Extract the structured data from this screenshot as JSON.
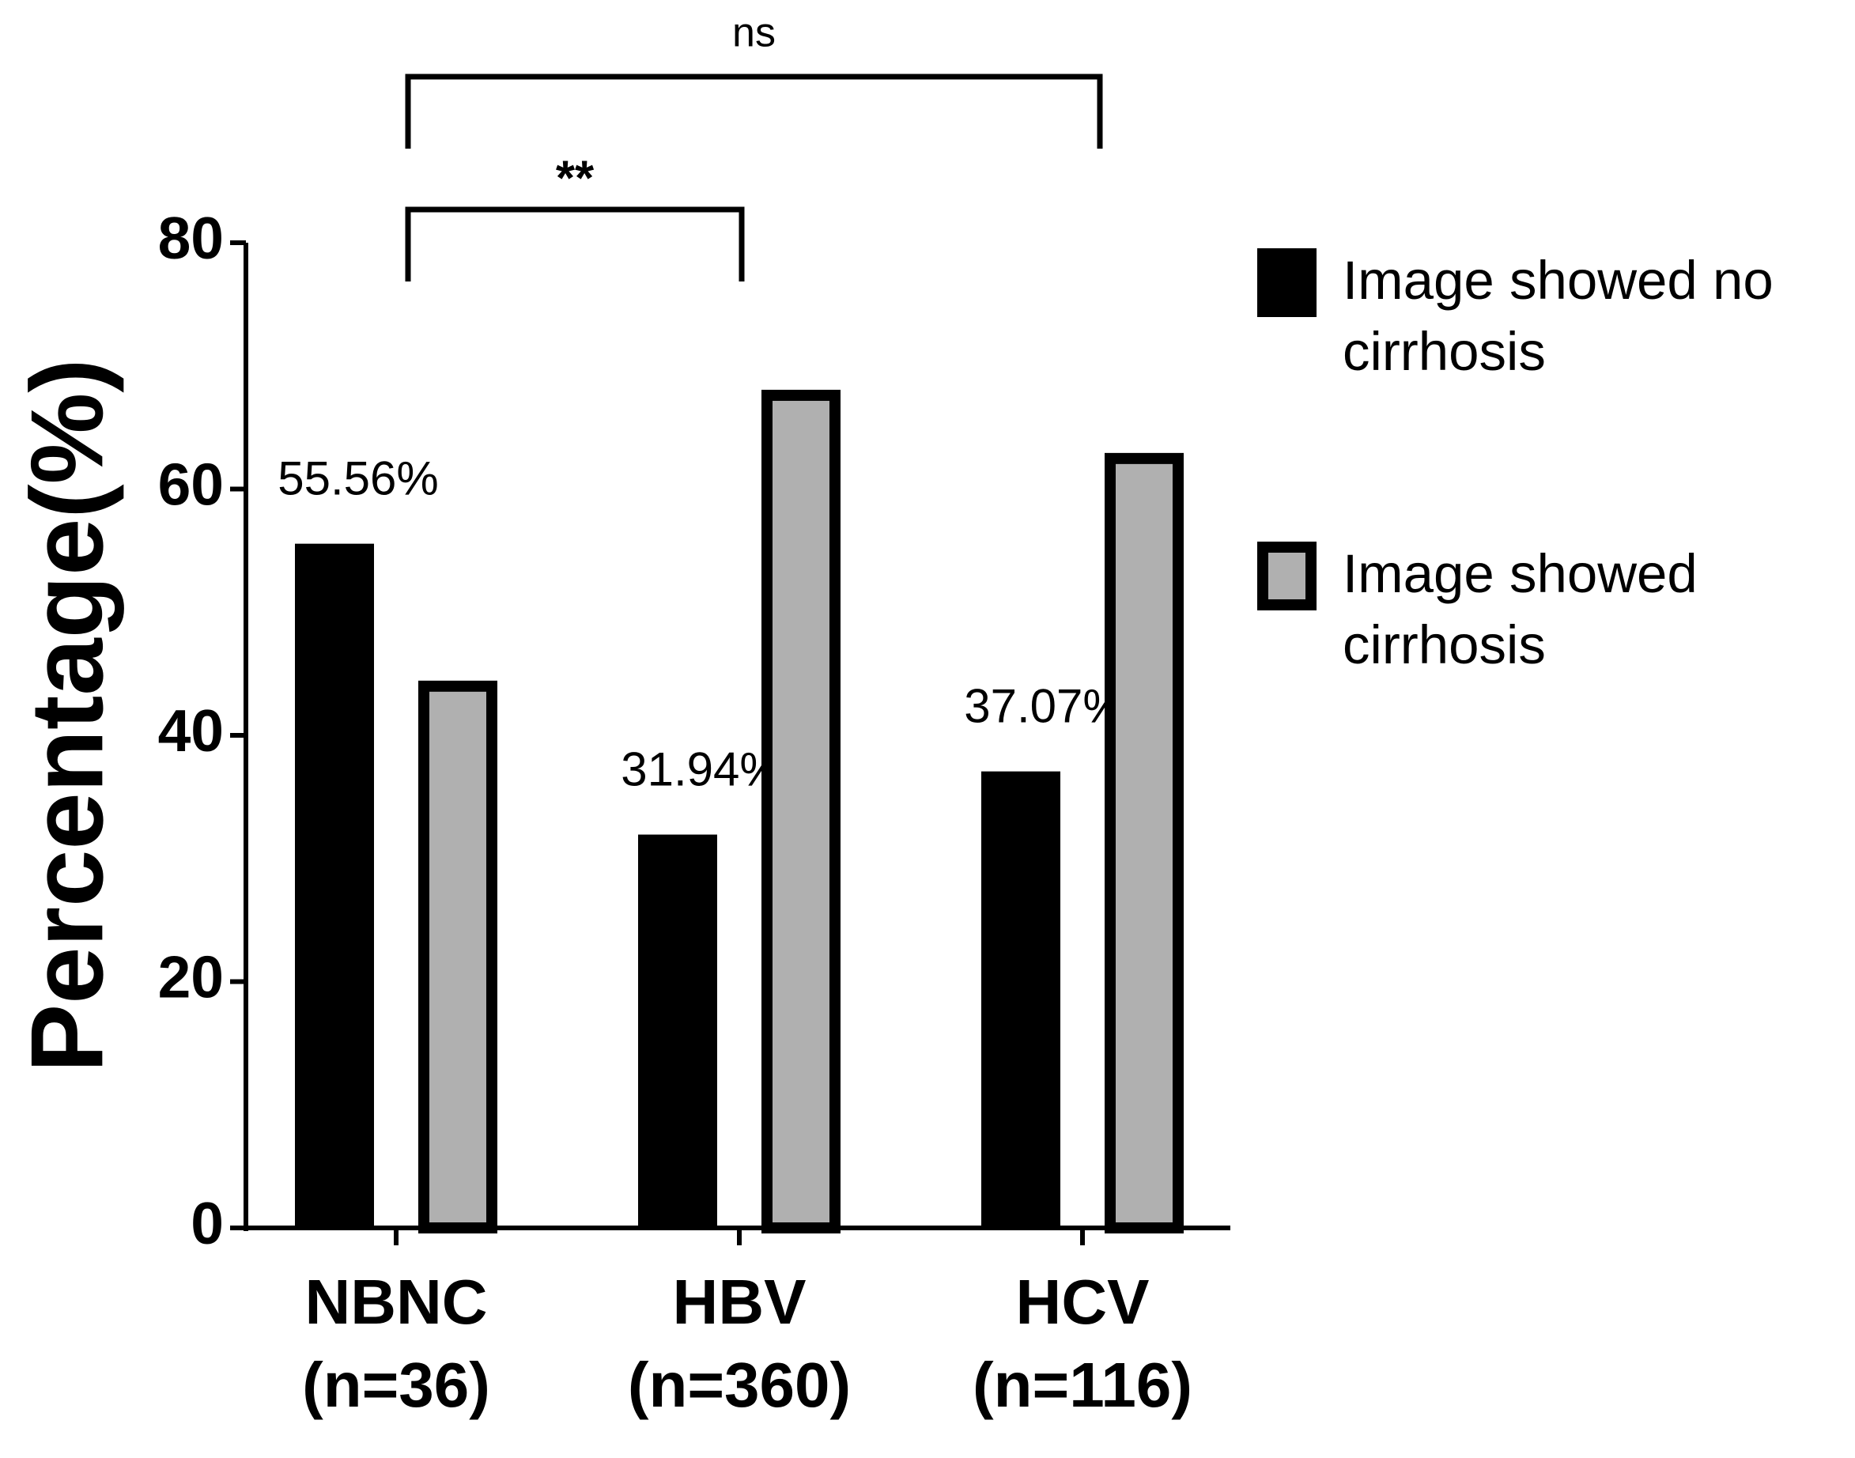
{
  "chart_data": {
    "type": "bar",
    "categories": [
      "NBNC",
      "HBV",
      "HCV"
    ],
    "category_sublabels": [
      "(n=36)",
      "(n=360)",
      "(n=116)"
    ],
    "y_label": "Percentage(%)",
    "series": [
      {
        "name": "Image showed no cirrhosis",
        "color": "#000000",
        "values": [
          55.56,
          31.94,
          37.07
        ],
        "value_labels": [
          "55.56%",
          "31.94%",
          "37.07%"
        ]
      },
      {
        "name": "Image showed cirrhosis",
        "color": "#b0b0b0",
        "values": [
          44.44,
          68.06,
          62.93
        ]
      }
    ],
    "ylim": [
      0,
      80
    ],
    "yticks": [
      0,
      20,
      40,
      60,
      80
    ],
    "legend": "right",
    "annotations": [
      {
        "text": "**",
        "from": "NBNC",
        "to": "HBV"
      },
      {
        "text": "ns",
        "from": "NBNC",
        "to": "HCV"
      }
    ]
  }
}
